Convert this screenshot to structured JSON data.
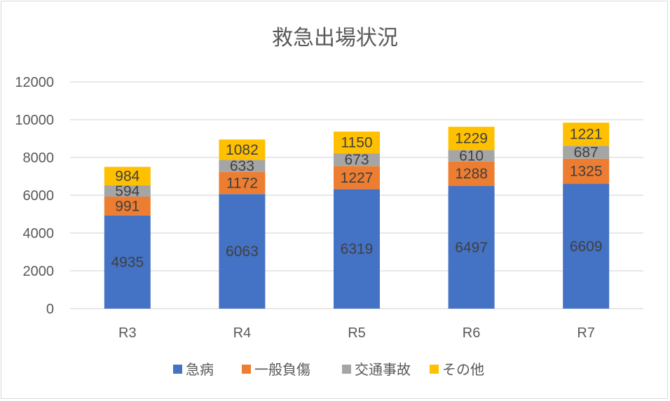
{
  "chart_data": {
    "type": "bar",
    "stacked": true,
    "title": "救急出場状況",
    "categories": [
      "R3",
      "R4",
      "R5",
      "R6",
      "R7"
    ],
    "series": [
      {
        "name": "急病",
        "color": "#4472C4",
        "values": [
          4935,
          6063,
          6319,
          6497,
          6609
        ]
      },
      {
        "name": "一般負傷",
        "color": "#ED7D31",
        "values": [
          991,
          1172,
          1227,
          1288,
          1325
        ]
      },
      {
        "name": "交通事故",
        "color": "#A5A5A5",
        "values": [
          594,
          633,
          673,
          610,
          687
        ]
      },
      {
        "name": "その他",
        "color": "#FFC000",
        "values": [
          984,
          1082,
          1150,
          1229,
          1221
        ]
      }
    ],
    "ylim": [
      0,
      12000
    ],
    "yticks": [
      0,
      2000,
      4000,
      6000,
      8000,
      10000,
      12000
    ],
    "grid": true,
    "data_labels": true,
    "legend_position": "bottom",
    "xlabel": "",
    "ylabel": ""
  }
}
